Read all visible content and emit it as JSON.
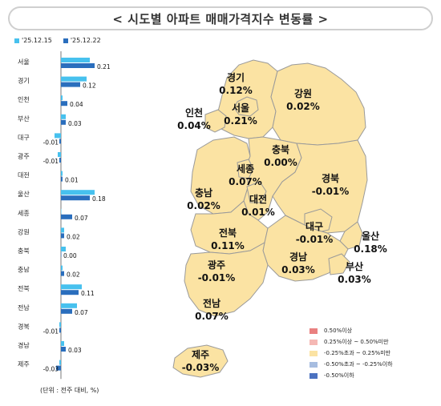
{
  "title": "< 시도별 아파트 매매가격지수 변동률 >",
  "legend": {
    "series1_label": "'25.12.15",
    "series2_label": "'25.12.22",
    "series1_color": "#47c1ee",
    "series2_color": "#2a6ebd"
  },
  "unit_note": "(단위 : 전주 대비, %)",
  "chart_data": {
    "type": "bar",
    "orientation": "horizontal",
    "categories": [
      "서울",
      "경기",
      "인천",
      "부산",
      "대구",
      "광주",
      "대전",
      "울산",
      "세종",
      "강원",
      "충북",
      "충남",
      "전북",
      "전남",
      "경북",
      "경남",
      "제주"
    ],
    "series": [
      {
        "name": "'25.12.15",
        "values": [
          0.18,
          0.16,
          0.01,
          0.03,
          -0.04,
          -0.02,
          0.01,
          0.21,
          0.0,
          0.02,
          0.03,
          0.01,
          0.13,
          0.1,
          -0.01,
          0.02,
          -0.01
        ]
      },
      {
        "name": "'25.12.22",
        "values": [
          0.21,
          0.12,
          0.04,
          0.03,
          -0.01,
          -0.01,
          0.01,
          0.18,
          0.07,
          0.02,
          0.0,
          0.02,
          0.11,
          0.07,
          -0.01,
          0.03,
          -0.03
        ]
      }
    ],
    "data_labels": [
      "0.21",
      "0.12",
      "0.04",
      "0.03",
      "-0.01",
      "-0.01",
      "0.01",
      "0.18",
      "0.07",
      "0.02",
      "0.00",
      "0.02",
      "0.11",
      "0.07",
      "-0.01",
      "0.03",
      "-0.03"
    ],
    "xlim": [
      -0.05,
      0.22
    ]
  },
  "map": {
    "regions": [
      {
        "name": "경기",
        "value": "0.12%",
        "color": "#fbe3a3"
      },
      {
        "name": "서울",
        "value": "0.21%",
        "color": "#fbe3a3"
      },
      {
        "name": "인천",
        "value": "0.04%",
        "color": "#fbe3a3"
      },
      {
        "name": "강원",
        "value": "0.02%",
        "color": "#fbe3a3"
      },
      {
        "name": "충북",
        "value": "0.00%",
        "color": "#fbe3a3"
      },
      {
        "name": "세종",
        "value": "0.07%",
        "color": "#fbe3a3"
      },
      {
        "name": "충남",
        "value": "0.02%",
        "color": "#fbe3a3"
      },
      {
        "name": "대전",
        "value": "0.01%",
        "color": "#fbe3a3"
      },
      {
        "name": "경북",
        "value": "-0.01%",
        "color": "#fbe3a3"
      },
      {
        "name": "대구",
        "value": "-0.01%",
        "color": "#fbe3a3"
      },
      {
        "name": "전북",
        "value": "0.11%",
        "color": "#fbe3a3"
      },
      {
        "name": "울산",
        "value": "0.18%",
        "color": "#fbe3a3"
      },
      {
        "name": "광주",
        "value": "-0.01%",
        "color": "#fbe3a3"
      },
      {
        "name": "경남",
        "value": "0.03%",
        "color": "#fbe3a3"
      },
      {
        "name": "부산",
        "value": "0.03%",
        "color": "#fbe3a3"
      },
      {
        "name": "전남",
        "value": "0.07%",
        "color": "#fbe3a3"
      },
      {
        "name": "제주",
        "value": "-0.03%",
        "color": "#fbe3a3"
      }
    ],
    "legend": [
      {
        "label": "0.50%이상",
        "color": "#e98080"
      },
      {
        "label": "0.25%이상 ~ 0.50%미만",
        "color": "#f5b8b4"
      },
      {
        "label": "-0.25%초과 ~ 0.25%미만",
        "color": "#fbe3a3"
      },
      {
        "label": "-0.50%초과 ~ -0.25%이하",
        "color": "#a7bde0"
      },
      {
        "label": "-0.50%이하",
        "color": "#4c72c0"
      }
    ]
  }
}
